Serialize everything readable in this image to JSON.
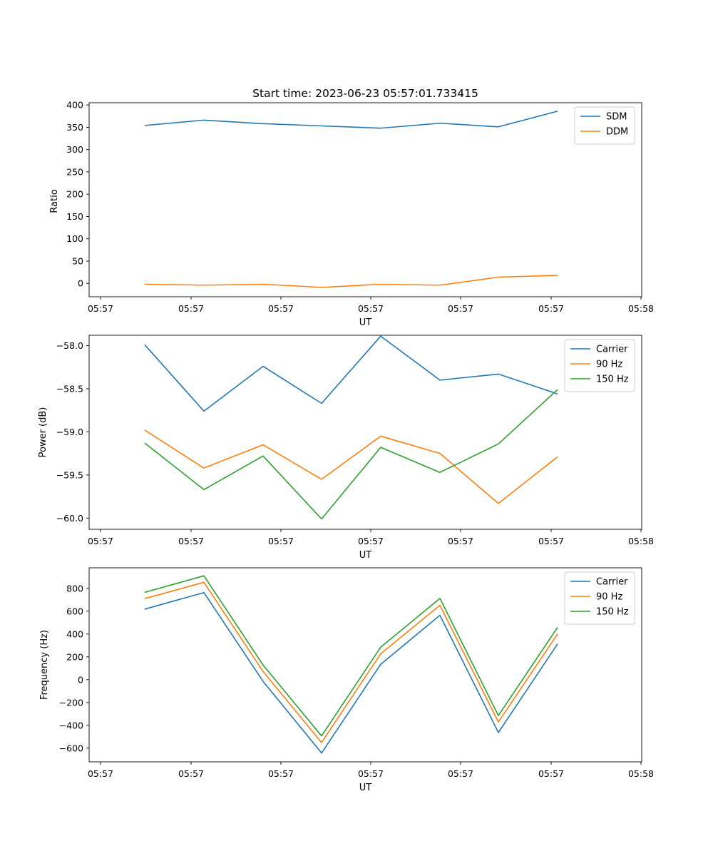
{
  "title": "Start time: 2023-06-23 05:57:01.733415",
  "chart_data": [
    {
      "type": "line",
      "xlabel": "UT",
      "ylabel": "Ratio",
      "x_tick_labels": [
        "05:57",
        "05:57",
        "05:57",
        "05:57",
        "05:57",
        "05:57",
        "05:58"
      ],
      "y_ticks": [
        0,
        50,
        100,
        150,
        200,
        250,
        300,
        350,
        400
      ],
      "ylim": [
        -30,
        405
      ],
      "legend_position": "upper-right",
      "series": [
        {
          "name": "SDM",
          "color": "#1f77b4",
          "values": [
            354,
            366,
            358,
            353,
            348,
            359,
            351,
            386
          ]
        },
        {
          "name": "DDM",
          "color": "#ff7f0e",
          "values": [
            -2,
            -4,
            -2,
            -9,
            -2,
            -4,
            14,
            18
          ]
        }
      ]
    },
    {
      "type": "line",
      "xlabel": "UT",
      "ylabel": "Power (dB)",
      "x_tick_labels": [
        "05:57",
        "05:57",
        "05:57",
        "05:57",
        "05:57",
        "05:57",
        "05:58"
      ],
      "y_ticks": [
        -60.0,
        -59.5,
        -59.0,
        -58.5,
        -58.0
      ],
      "y_tick_labels": [
        "−60.0",
        "−59.5",
        "−59.0",
        "−58.5",
        "−58.0"
      ],
      "ylim": [
        -60.13,
        -57.88
      ],
      "legend_position": "upper-right",
      "series": [
        {
          "name": "Carrier",
          "color": "#1f77b4",
          "values": [
            -57.99,
            -58.76,
            -58.24,
            -58.67,
            -57.89,
            -58.4,
            -58.33,
            -58.56
          ]
        },
        {
          "name": "90 Hz",
          "color": "#ff7f0e",
          "values": [
            -58.98,
            -59.42,
            -59.15,
            -59.55,
            -59.05,
            -59.25,
            -59.83,
            -59.29
          ]
        },
        {
          "name": "150 Hz",
          "color": "#2ca02c",
          "values": [
            -59.13,
            -59.67,
            -59.28,
            -60.01,
            -59.18,
            -59.47,
            -59.14,
            -58.51
          ]
        }
      ]
    },
    {
      "type": "line",
      "xlabel": "UT",
      "ylabel": "Frequency (Hz)",
      "x_tick_labels": [
        "05:57",
        "05:57",
        "05:57",
        "05:57",
        "05:57",
        "05:57",
        "05:58"
      ],
      "y_ticks": [
        -600,
        -400,
        -200,
        0,
        200,
        400,
        600,
        800
      ],
      "y_tick_labels": [
        "−600",
        "−400",
        "−200",
        "0",
        "200",
        "400",
        "600",
        "800"
      ],
      "ylim": [
        -720,
        980
      ],
      "legend_position": "upper-right",
      "series": [
        {
          "name": "Carrier",
          "color": "#1f77b4",
          "values": [
            618,
            763,
            -15,
            -643,
            135,
            564,
            -463,
            313
          ]
        },
        {
          "name": "90 Hz",
          "color": "#ff7f0e",
          "values": [
            710,
            853,
            72,
            -551,
            227,
            652,
            -371,
            400
          ]
        },
        {
          "name": "150 Hz",
          "color": "#2ca02c",
          "values": [
            765,
            910,
            128,
            -493,
            285,
            712,
            -315,
            458
          ]
        }
      ]
    }
  ]
}
